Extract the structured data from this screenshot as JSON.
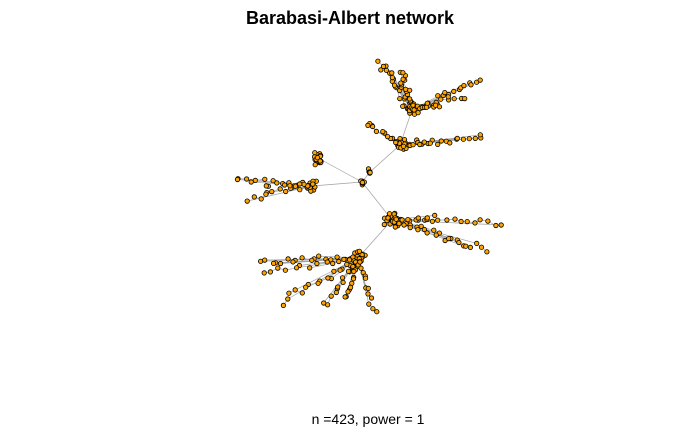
{
  "title": "Barabasi-Albert network",
  "caption": "n =423, power = 1",
  "colors": {
    "node_fill": "#ffa500",
    "node_stroke": "#000000",
    "edge": "#a0a0a0"
  },
  "graph": {
    "node_count": 423,
    "power": 1
  }
}
